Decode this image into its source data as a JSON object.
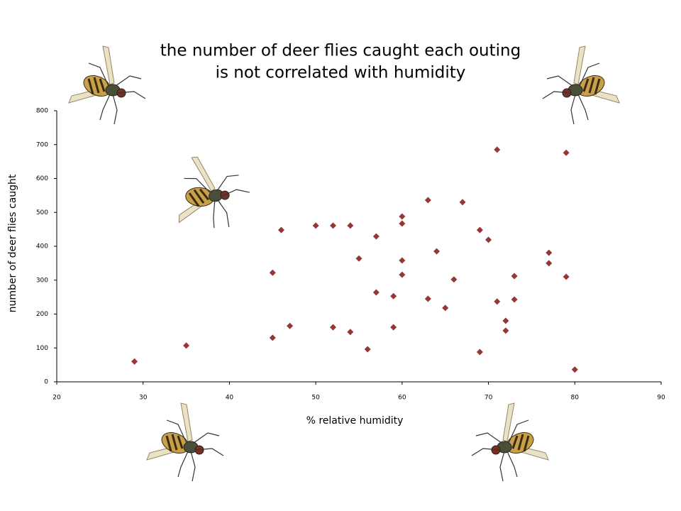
{
  "chart_data": {
    "type": "scatter",
    "title": [
      "the number of deer flies caught each outing",
      "is not correlated with humidity"
    ],
    "x_label": "% relative humidity",
    "y_label": "number of deer flies caught",
    "color": "#953735",
    "xlim": [
      20,
      90
    ],
    "xticks": [
      20,
      30,
      40,
      50,
      60,
      70,
      80,
      90
    ],
    "ylim": [
      0,
      800
    ],
    "yticks": [
      0,
      100,
      200,
      300,
      400,
      500,
      600,
      700,
      800
    ],
    "x": [
      29,
      35,
      45,
      45,
      46,
      47,
      50,
      52,
      52,
      54,
      54,
      55,
      56,
      57,
      57,
      59,
      59,
      60,
      60,
      60,
      60,
      63,
      63,
      64,
      65,
      66,
      67,
      69,
      69,
      70,
      71,
      71,
      72,
      72,
      73,
      73,
      77,
      77,
      79,
      79,
      80
    ],
    "values": [
      60,
      107,
      322,
      130,
      448,
      165,
      461,
      461,
      161,
      461,
      147,
      364,
      96,
      429,
      264,
      253,
      161,
      488,
      467,
      358,
      316,
      536,
      245,
      385,
      218,
      302,
      530,
      448,
      88,
      419,
      685,
      237,
      180,
      151,
      312,
      243,
      381,
      350,
      676,
      310,
      36
    ]
  }
}
